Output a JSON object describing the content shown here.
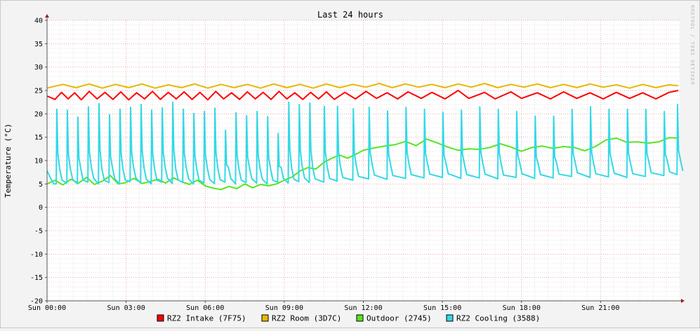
{
  "chart_data": {
    "type": "line",
    "title": "Last 24 hours",
    "ylabel": "Temperature (°C)",
    "watermark": "RRDTOOL / TOBI OETIKER",
    "xlim_hours": [
      0,
      24
    ],
    "ylim": [
      -20,
      40
    ],
    "y_ticks": [
      40,
      35,
      30,
      25,
      20,
      15,
      10,
      5,
      0,
      -5,
      -10,
      -15,
      -20
    ],
    "x_ticks": [
      {
        "label": "Sun 00:00",
        "hour": 0
      },
      {
        "label": "Sun 03:00",
        "hour": 3
      },
      {
        "label": "Sun 06:00",
        "hour": 6
      },
      {
        "label": "Sun 09:00",
        "hour": 9
      },
      {
        "label": "Sun 12:00",
        "hour": 12
      },
      {
        "label": "Sun 15:00",
        "hour": 15
      },
      {
        "label": "Sun 18:00",
        "hour": 18
      },
      {
        "label": "Sun 21:00",
        "hour": 21
      }
    ],
    "grid": true,
    "legend_position": "bottom",
    "series": [
      {
        "name": "RZ2 Intake (7F75)",
        "color": "#ff0000",
        "x": [
          0,
          0.3,
          0.55,
          0.8,
          1.05,
          1.3,
          1.6,
          1.9,
          2.2,
          2.5,
          2.8,
          3.1,
          3.4,
          3.7,
          4.0,
          4.3,
          4.6,
          4.9,
          5.2,
          5.5,
          5.8,
          6.1,
          6.4,
          6.7,
          7.0,
          7.3,
          7.6,
          7.9,
          8.2,
          8.5,
          8.8,
          9.1,
          9.4,
          9.7,
          10.0,
          10.3,
          10.6,
          10.9,
          11.3,
          11.7,
          12.1,
          12.5,
          12.9,
          13.3,
          13.7,
          14.2,
          14.6,
          15.1,
          15.6,
          16.0,
          16.6,
          17.0,
          17.6,
          18.0,
          18.6,
          19.1,
          19.6,
          20.1,
          20.6,
          21.1,
          21.6,
          22.1,
          22.6,
          23.1,
          23.6,
          23.95
        ],
        "values": [
          23.8,
          23.1,
          24.6,
          23.2,
          24.5,
          23.0,
          24.8,
          23.2,
          24.6,
          23.1,
          24.7,
          23.0,
          24.5,
          23.2,
          24.8,
          23.1,
          24.6,
          23.2,
          24.7,
          23.1,
          24.6,
          23.0,
          24.8,
          23.2,
          24.5,
          23.1,
          24.7,
          23.2,
          24.6,
          23.1,
          24.8,
          23.2,
          24.5,
          23.1,
          24.6,
          23.2,
          24.7,
          23.1,
          24.6,
          23.2,
          24.8,
          23.3,
          24.5,
          23.2,
          24.7,
          23.3,
          24.6,
          23.2,
          25.0,
          23.3,
          24.6,
          23.2,
          24.7,
          23.3,
          24.5,
          23.2,
          24.7,
          23.3,
          24.5,
          23.2,
          24.6,
          23.3,
          24.5,
          23.2,
          24.6,
          25.0
        ]
      },
      {
        "name": "RZ2 Room (3D7C)",
        "color": "#e8b800",
        "x": [
          0,
          0.6,
          1.1,
          1.6,
          2.1,
          2.6,
          3.1,
          3.6,
          4.1,
          4.6,
          5.1,
          5.6,
          6.1,
          6.6,
          7.1,
          7.6,
          8.1,
          8.6,
          9.1,
          9.6,
          10.1,
          10.6,
          11.1,
          11.6,
          12.1,
          12.6,
          13.1,
          13.6,
          14.1,
          14.6,
          15.1,
          15.6,
          16.1,
          16.6,
          17.1,
          17.6,
          18.1,
          18.6,
          19.1,
          19.6,
          20.1,
          20.6,
          21.1,
          21.6,
          22.1,
          22.6,
          23.1,
          23.6,
          23.95
        ],
        "values": [
          25.5,
          26.3,
          25.6,
          26.4,
          25.5,
          26.3,
          25.6,
          26.4,
          25.5,
          26.2,
          25.6,
          26.4,
          25.5,
          26.3,
          25.6,
          26.3,
          25.5,
          26.4,
          25.6,
          26.3,
          25.5,
          26.4,
          25.6,
          26.3,
          25.7,
          26.5,
          25.6,
          26.4,
          25.7,
          26.3,
          25.6,
          26.4,
          25.7,
          26.5,
          25.6,
          26.3,
          25.7,
          26.4,
          25.6,
          26.3,
          25.6,
          26.4,
          25.7,
          26.2,
          25.5,
          26.3,
          25.6,
          26.2,
          26.0
        ]
      },
      {
        "name": "Outdoor (2745)",
        "color": "#55e61f",
        "x": [
          0,
          0.3,
          0.6,
          0.9,
          1.2,
          1.5,
          1.8,
          2.1,
          2.4,
          2.7,
          3.0,
          3.3,
          3.6,
          3.9,
          4.2,
          4.5,
          4.8,
          5.1,
          5.4,
          5.7,
          6.0,
          6.3,
          6.6,
          6.9,
          7.2,
          7.5,
          7.8,
          8.1,
          8.4,
          8.7,
          9.0,
          9.3,
          9.6,
          9.9,
          10.2,
          10.5,
          10.8,
          11.1,
          11.4,
          11.7,
          12.0,
          12.4,
          12.8,
          13.2,
          13.6,
          14.0,
          14.4,
          14.8,
          15.2,
          15.6,
          16.0,
          16.4,
          16.8,
          17.2,
          17.6,
          18.0,
          18.4,
          18.8,
          19.2,
          19.6,
          20.0,
          20.4,
          20.8,
          21.2,
          21.6,
          22.0,
          22.4,
          22.8,
          23.2,
          23.6,
          23.95
        ],
        "values": [
          5.0,
          5.8,
          4.8,
          6.0,
          5.2,
          6.4,
          4.9,
          5.6,
          6.8,
          5.0,
          5.3,
          6.2,
          5.1,
          5.5,
          6.0,
          5.2,
          6.3,
          5.5,
          4.9,
          5.8,
          4.6,
          4.1,
          3.8,
          4.5,
          4.0,
          5.0,
          4.2,
          4.9,
          4.6,
          5.0,
          5.8,
          6.5,
          7.8,
          8.5,
          8.2,
          9.6,
          10.5,
          11.2,
          10.5,
          11.3,
          12.2,
          12.7,
          13.1,
          13.4,
          14.1,
          13.2,
          14.6,
          13.8,
          12.9,
          12.2,
          12.5,
          12.4,
          12.8,
          13.6,
          12.9,
          12.0,
          12.8,
          13.1,
          12.6,
          13.0,
          12.8,
          12.1,
          13.0,
          14.4,
          14.8,
          13.9,
          14.0,
          13.7,
          14.0,
          14.9,
          14.8
        ]
      },
      {
        "name": "RZ2 Cooling (3588)",
        "color": "#33d9e6",
        "spikes": {
          "times": [
            0.35,
            0.75,
            1.15,
            1.55,
            1.95,
            2.35,
            2.75,
            3.15,
            3.55,
            3.95,
            4.35,
            4.75,
            5.15,
            5.55,
            5.95,
            6.35,
            6.75,
            7.15,
            7.55,
            7.95,
            8.35,
            8.75,
            9.15,
            9.55,
            9.95,
            10.5,
            11.0,
            11.6,
            12.2,
            12.9,
            13.6,
            14.3,
            15.0,
            15.7,
            16.4,
            17.1,
            17.8,
            18.5,
            19.2,
            19.9,
            20.6,
            21.3,
            22.0,
            22.7,
            23.4,
            23.9
          ],
          "peaks": [
            21.0,
            20.8,
            19.3,
            21.5,
            22.2,
            19.8,
            21.0,
            21.4,
            22.0,
            20.8,
            21.3,
            22.5,
            21.0,
            20.1,
            20.5,
            21.2,
            16.5,
            20.2,
            19.6,
            20.5,
            19.4,
            15.8,
            22.5,
            22.0,
            22.3,
            21.6,
            21.6,
            21.1,
            21.4,
            20.6,
            21.4,
            21.0,
            20.3,
            20.8,
            21.5,
            21.0,
            20.5,
            19.5,
            19.5,
            21.0,
            21.5,
            21.0,
            21.0,
            21.0,
            20.5,
            22.0
          ],
          "troughs": [
            5.0,
            5.2,
            5.0,
            5.4,
            5.0,
            5.3,
            5.0,
            5.5,
            5.2,
            5.0,
            5.4,
            5.1,
            5.3,
            5.0,
            5.2,
            5.1,
            5.4,
            5.0,
            5.3,
            5.2,
            5.0,
            5.4,
            5.2,
            5.5,
            5.3,
            5.4,
            5.6,
            5.8,
            6.1,
            6.0,
            6.2,
            6.3,
            6.4,
            6.2,
            6.3,
            6.1,
            6.4,
            6.2,
            6.3,
            6.6,
            6.4,
            6.5,
            6.4,
            6.6,
            6.8,
            7.0
          ]
        }
      }
    ]
  }
}
